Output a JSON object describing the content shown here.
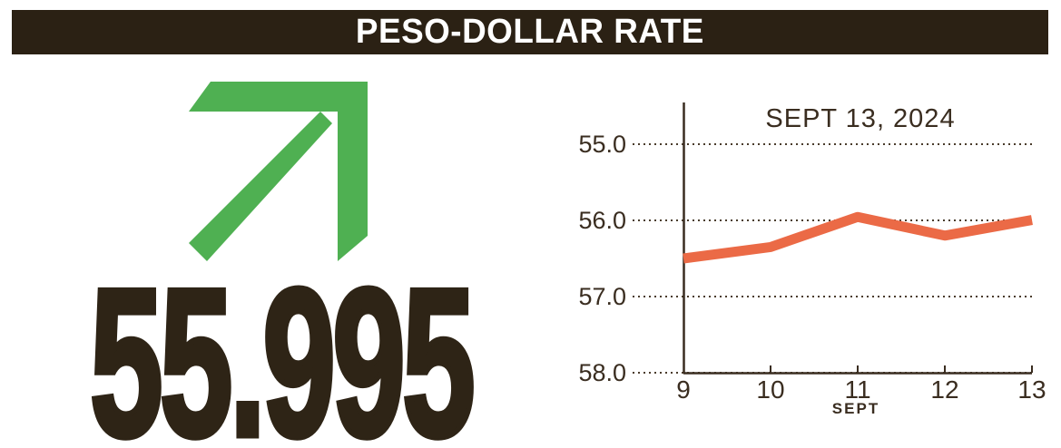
{
  "header": {
    "title": "PESO-DOLLAR RATE"
  },
  "left_panel": {
    "value": "55.995",
    "trend_icon": "arrow-up-right",
    "trend_direction": "up"
  },
  "colors": {
    "header_bg": "#2b2114",
    "dark_text": "#2e2416",
    "axis_text": "#3a2d20",
    "green_arrow": "#4fb052",
    "line_orange": "#eb6a46",
    "grid": "#4a3c2c"
  },
  "chart_data": {
    "type": "line",
    "title": "SEPT 13, 2024",
    "x": [
      9,
      10,
      11,
      12,
      13
    ],
    "values": [
      56.5,
      56.35,
      55.955,
      56.2,
      55.995
    ],
    "x_tick_labels": [
      "9",
      "10",
      "11",
      "12",
      "13"
    ],
    "y_ticks": [
      55.0,
      56.0,
      57.0,
      58.0
    ],
    "y_tick_labels": [
      "55.0",
      "56.0",
      "57.0",
      "58.0"
    ],
    "xlabel": "SEPT",
    "ylabel": "",
    "ylim": [
      55.0,
      58.0
    ],
    "y_axis_inverted": true,
    "grid": "dotted-horizontal",
    "legend": "none"
  }
}
